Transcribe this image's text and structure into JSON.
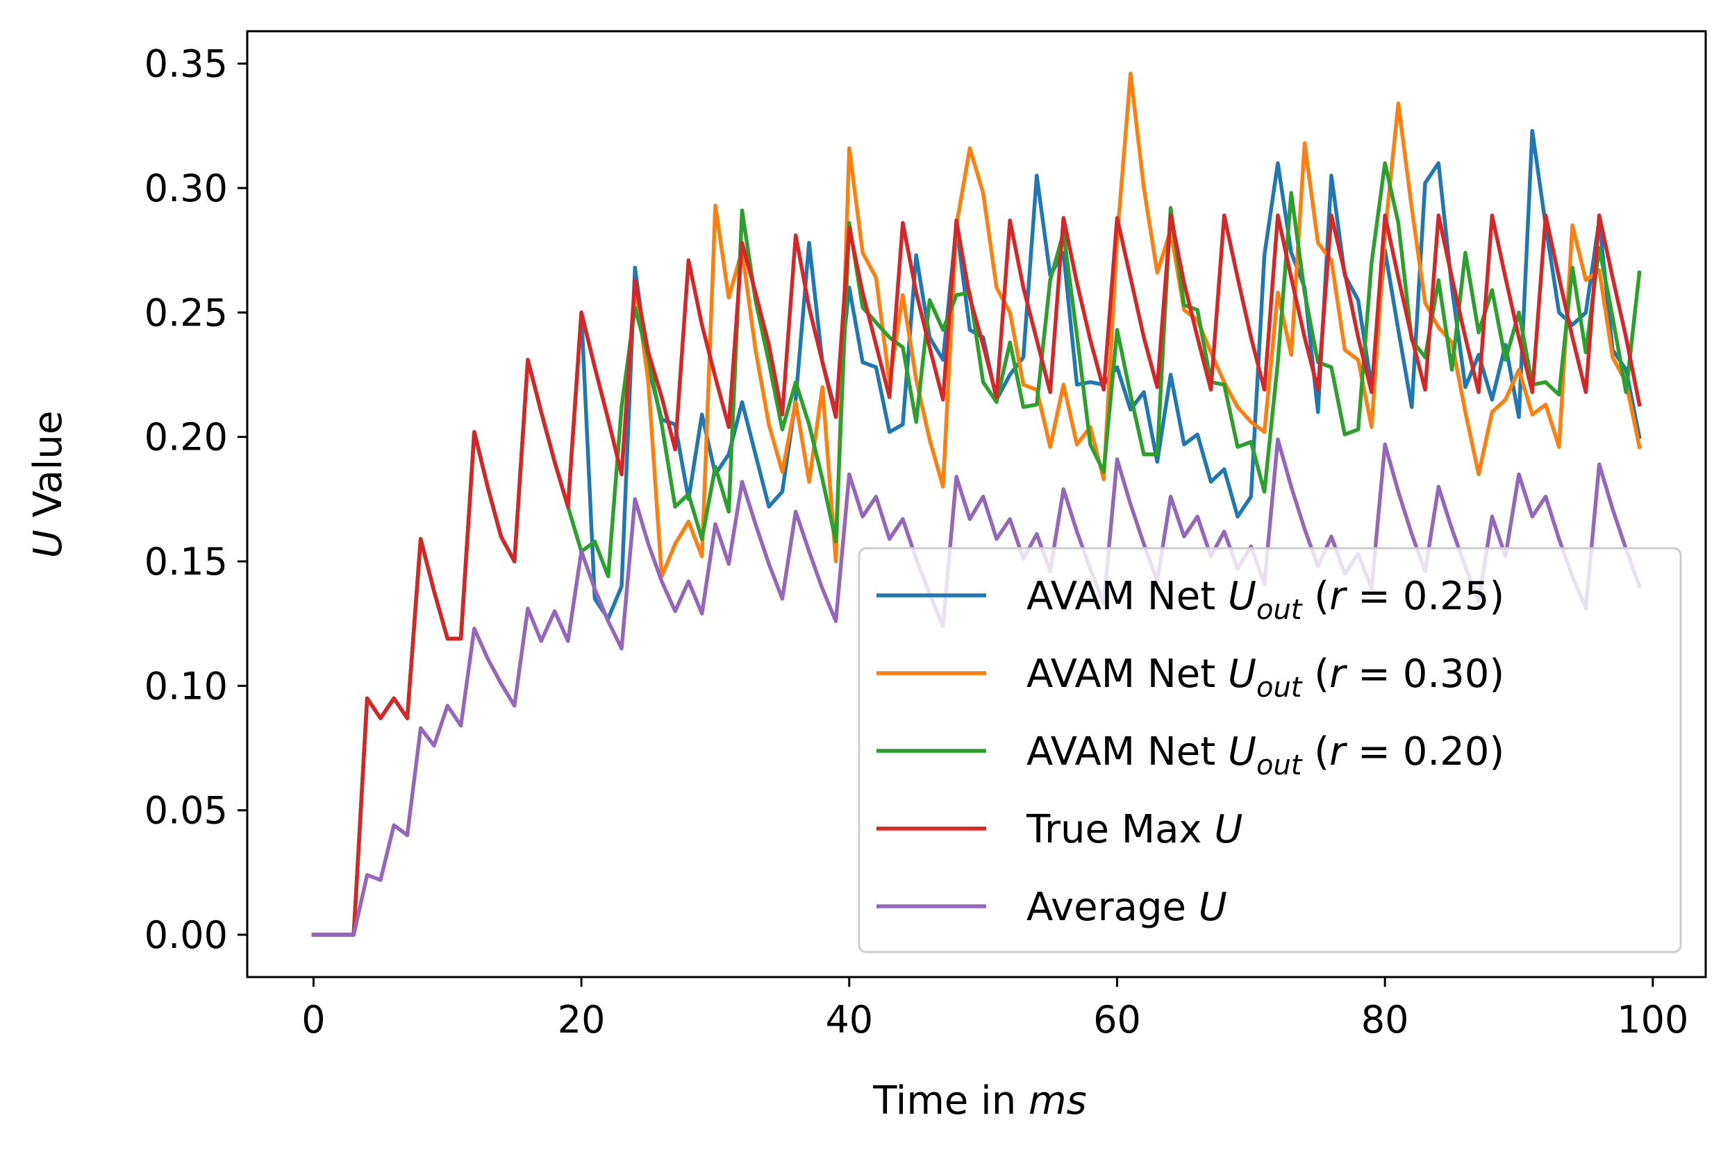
{
  "chart_data": {
    "type": "line",
    "xlabel": {
      "prefix": "Time in ",
      "var": "ms"
    },
    "ylabel": {
      "var": "U",
      "suffix": " Value"
    },
    "xlim": [
      -4.95,
      103.95
    ],
    "ylim": [
      -0.017,
      0.363
    ],
    "xticks": [
      0,
      20,
      40,
      60,
      80,
      100
    ],
    "yticks": [
      0.0,
      0.05,
      0.1,
      0.15,
      0.2,
      0.25,
      0.3,
      0.35
    ],
    "grid": false,
    "legend_position": "lower right",
    "x": [
      0,
      1,
      2,
      3,
      4,
      5,
      6,
      7,
      8,
      9,
      10,
      11,
      12,
      13,
      14,
      15,
      16,
      17,
      18,
      19,
      20,
      21,
      22,
      23,
      24,
      25,
      26,
      27,
      28,
      29,
      30,
      31,
      32,
      33,
      34,
      35,
      36,
      37,
      38,
      39,
      40,
      41,
      42,
      43,
      44,
      45,
      46,
      47,
      48,
      49,
      50,
      51,
      52,
      53,
      54,
      55,
      56,
      57,
      58,
      59,
      60,
      61,
      62,
      63,
      64,
      65,
      66,
      67,
      68,
      69,
      70,
      71,
      72,
      73,
      74,
      75,
      76,
      77,
      78,
      79,
      80,
      81,
      82,
      83,
      84,
      85,
      86,
      87,
      88,
      89,
      90,
      91,
      92,
      93,
      94,
      95,
      96,
      97,
      98,
      99
    ],
    "series": [
      {
        "name": "AVAM Net",
        "sub": "out",
        "rval": "0.25",
        "color": "#1f77b4",
        "values": [
          0,
          0,
          0,
          0,
          0.095,
          0.087,
          0.095,
          0.087,
          0.159,
          0.138,
          0.119,
          0.119,
          0.202,
          0.18,
          0.16,
          0.15,
          0.231,
          0.21,
          0.19,
          0.172,
          0.25,
          0.135,
          0.127,
          0.14,
          0.268,
          0.228,
          0.207,
          0.205,
          0.175,
          0.209,
          0.185,
          0.193,
          0.214,
          0.193,
          0.172,
          0.178,
          0.215,
          0.278,
          0.23,
          0.21,
          0.26,
          0.23,
          0.228,
          0.202,
          0.205,
          0.273,
          0.24,
          0.231,
          0.285,
          0.243,
          0.24,
          0.215,
          0.225,
          0.232,
          0.305,
          0.265,
          0.274,
          0.221,
          0.222,
          0.221,
          0.228,
          0.211,
          0.218,
          0.19,
          0.225,
          0.197,
          0.201,
          0.182,
          0.187,
          0.168,
          0.176,
          0.273,
          0.31,
          0.274,
          0.26,
          0.21,
          0.305,
          0.265,
          0.255,
          0.22,
          0.275,
          0.243,
          0.212,
          0.302,
          0.31,
          0.26,
          0.22,
          0.233,
          0.215,
          0.237,
          0.208,
          0.323,
          0.285,
          0.25,
          0.245,
          0.25,
          0.287,
          0.235,
          0.227,
          0.2
        ]
      },
      {
        "name": "AVAM Net",
        "sub": "out",
        "rval": "0.30",
        "color": "#ff7f0e",
        "values": [
          0,
          0,
          0,
          0,
          0.095,
          0.087,
          0.095,
          0.087,
          0.159,
          0.138,
          0.119,
          0.119,
          0.202,
          0.18,
          0.16,
          0.15,
          0.231,
          0.21,
          0.19,
          0.172,
          0.25,
          0.228,
          0.207,
          0.185,
          0.262,
          0.222,
          0.144,
          0.157,
          0.166,
          0.152,
          0.293,
          0.256,
          0.275,
          0.235,
          0.205,
          0.186,
          0.214,
          0.182,
          0.22,
          0.15,
          0.316,
          0.274,
          0.264,
          0.222,
          0.257,
          0.223,
          0.199,
          0.18,
          0.285,
          0.316,
          0.298,
          0.26,
          0.25,
          0.221,
          0.219,
          0.196,
          0.221,
          0.197,
          0.204,
          0.183,
          0.28,
          0.346,
          0.3,
          0.266,
          0.283,
          0.251,
          0.247,
          0.234,
          0.222,
          0.212,
          0.206,
          0.202,
          0.258,
          0.233,
          0.318,
          0.278,
          0.271,
          0.235,
          0.231,
          0.204,
          0.282,
          0.334,
          0.292,
          0.254,
          0.244,
          0.238,
          0.21,
          0.185,
          0.21,
          0.215,
          0.227,
          0.209,
          0.213,
          0.196,
          0.285,
          0.263,
          0.267,
          0.232,
          0.222,
          0.196
        ]
      },
      {
        "name": "AVAM Net",
        "sub": "out",
        "rval": "0.20",
        "color": "#2ca02c",
        "values": [
          0,
          0,
          0,
          0,
          0.095,
          0.087,
          0.095,
          0.087,
          0.159,
          0.138,
          0.119,
          0.119,
          0.202,
          0.18,
          0.16,
          0.15,
          0.231,
          0.21,
          0.19,
          0.172,
          0.154,
          0.158,
          0.144,
          0.212,
          0.252,
          0.232,
          0.205,
          0.172,
          0.177,
          0.159,
          0.188,
          0.17,
          0.291,
          0.255,
          0.23,
          0.203,
          0.222,
          0.205,
          0.183,
          0.158,
          0.286,
          0.252,
          0.246,
          0.24,
          0.236,
          0.206,
          0.255,
          0.243,
          0.257,
          0.258,
          0.222,
          0.214,
          0.238,
          0.212,
          0.213,
          0.263,
          0.282,
          0.241,
          0.197,
          0.186,
          0.243,
          0.217,
          0.193,
          0.193,
          0.292,
          0.253,
          0.251,
          0.222,
          0.221,
          0.196,
          0.198,
          0.178,
          0.23,
          0.298,
          0.258,
          0.23,
          0.228,
          0.201,
          0.203,
          0.27,
          0.31,
          0.286,
          0.239,
          0.232,
          0.263,
          0.227,
          0.274,
          0.242,
          0.259,
          0.231,
          0.25,
          0.221,
          0.222,
          0.217,
          0.268,
          0.234,
          0.276,
          0.248,
          0.218,
          0.266
        ]
      },
      {
        "name": "True Max",
        "color": "#d62728",
        "values": [
          0,
          0,
          0,
          0,
          0.095,
          0.087,
          0.095,
          0.087,
          0.159,
          0.138,
          0.119,
          0.119,
          0.202,
          0.18,
          0.16,
          0.15,
          0.231,
          0.21,
          0.19,
          0.172,
          0.25,
          0.228,
          0.207,
          0.185,
          0.263,
          0.234,
          0.216,
          0.195,
          0.271,
          0.245,
          0.224,
          0.204,
          0.278,
          0.258,
          0.237,
          0.209,
          0.281,
          0.252,
          0.23,
          0.208,
          0.284,
          0.258,
          0.237,
          0.216,
          0.286,
          0.258,
          0.236,
          0.215,
          0.287,
          0.256,
          0.237,
          0.216,
          0.287,
          0.26,
          0.239,
          0.218,
          0.288,
          0.262,
          0.239,
          0.219,
          0.288,
          0.264,
          0.24,
          0.22,
          0.289,
          0.262,
          0.24,
          0.219,
          0.289,
          0.264,
          0.24,
          0.219,
          0.289,
          0.264,
          0.24,
          0.219,
          0.289,
          0.266,
          0.24,
          0.218,
          0.289,
          0.264,
          0.24,
          0.219,
          0.289,
          0.264,
          0.24,
          0.218,
          0.289,
          0.264,
          0.24,
          0.218,
          0.289,
          0.264,
          0.24,
          0.218,
          0.289,
          0.264,
          0.24,
          0.213
        ]
      },
      {
        "name": "Average",
        "color": "#9467bd",
        "values": [
          0,
          0,
          0,
          0,
          0.024,
          0.022,
          0.044,
          0.04,
          0.083,
          0.076,
          0.092,
          0.084,
          0.123,
          0.111,
          0.101,
          0.092,
          0.131,
          0.118,
          0.13,
          0.118,
          0.154,
          0.139,
          0.126,
          0.115,
          0.175,
          0.157,
          0.142,
          0.13,
          0.142,
          0.129,
          0.165,
          0.149,
          0.182,
          0.165,
          0.149,
          0.135,
          0.17,
          0.154,
          0.139,
          0.126,
          0.185,
          0.168,
          0.176,
          0.159,
          0.167,
          0.151,
          0.137,
          0.124,
          0.184,
          0.167,
          0.176,
          0.159,
          0.167,
          0.151,
          0.161,
          0.146,
          0.179,
          0.162,
          0.147,
          0.133,
          0.191,
          0.173,
          0.157,
          0.142,
          0.176,
          0.16,
          0.168,
          0.152,
          0.162,
          0.147,
          0.156,
          0.141,
          0.199,
          0.18,
          0.163,
          0.148,
          0.16,
          0.145,
          0.153,
          0.139,
          0.197,
          0.178,
          0.161,
          0.146,
          0.18,
          0.163,
          0.148,
          0.134,
          0.168,
          0.152,
          0.185,
          0.168,
          0.176,
          0.159,
          0.144,
          0.131,
          0.189,
          0.171,
          0.155,
          0.14
        ]
      }
    ]
  }
}
